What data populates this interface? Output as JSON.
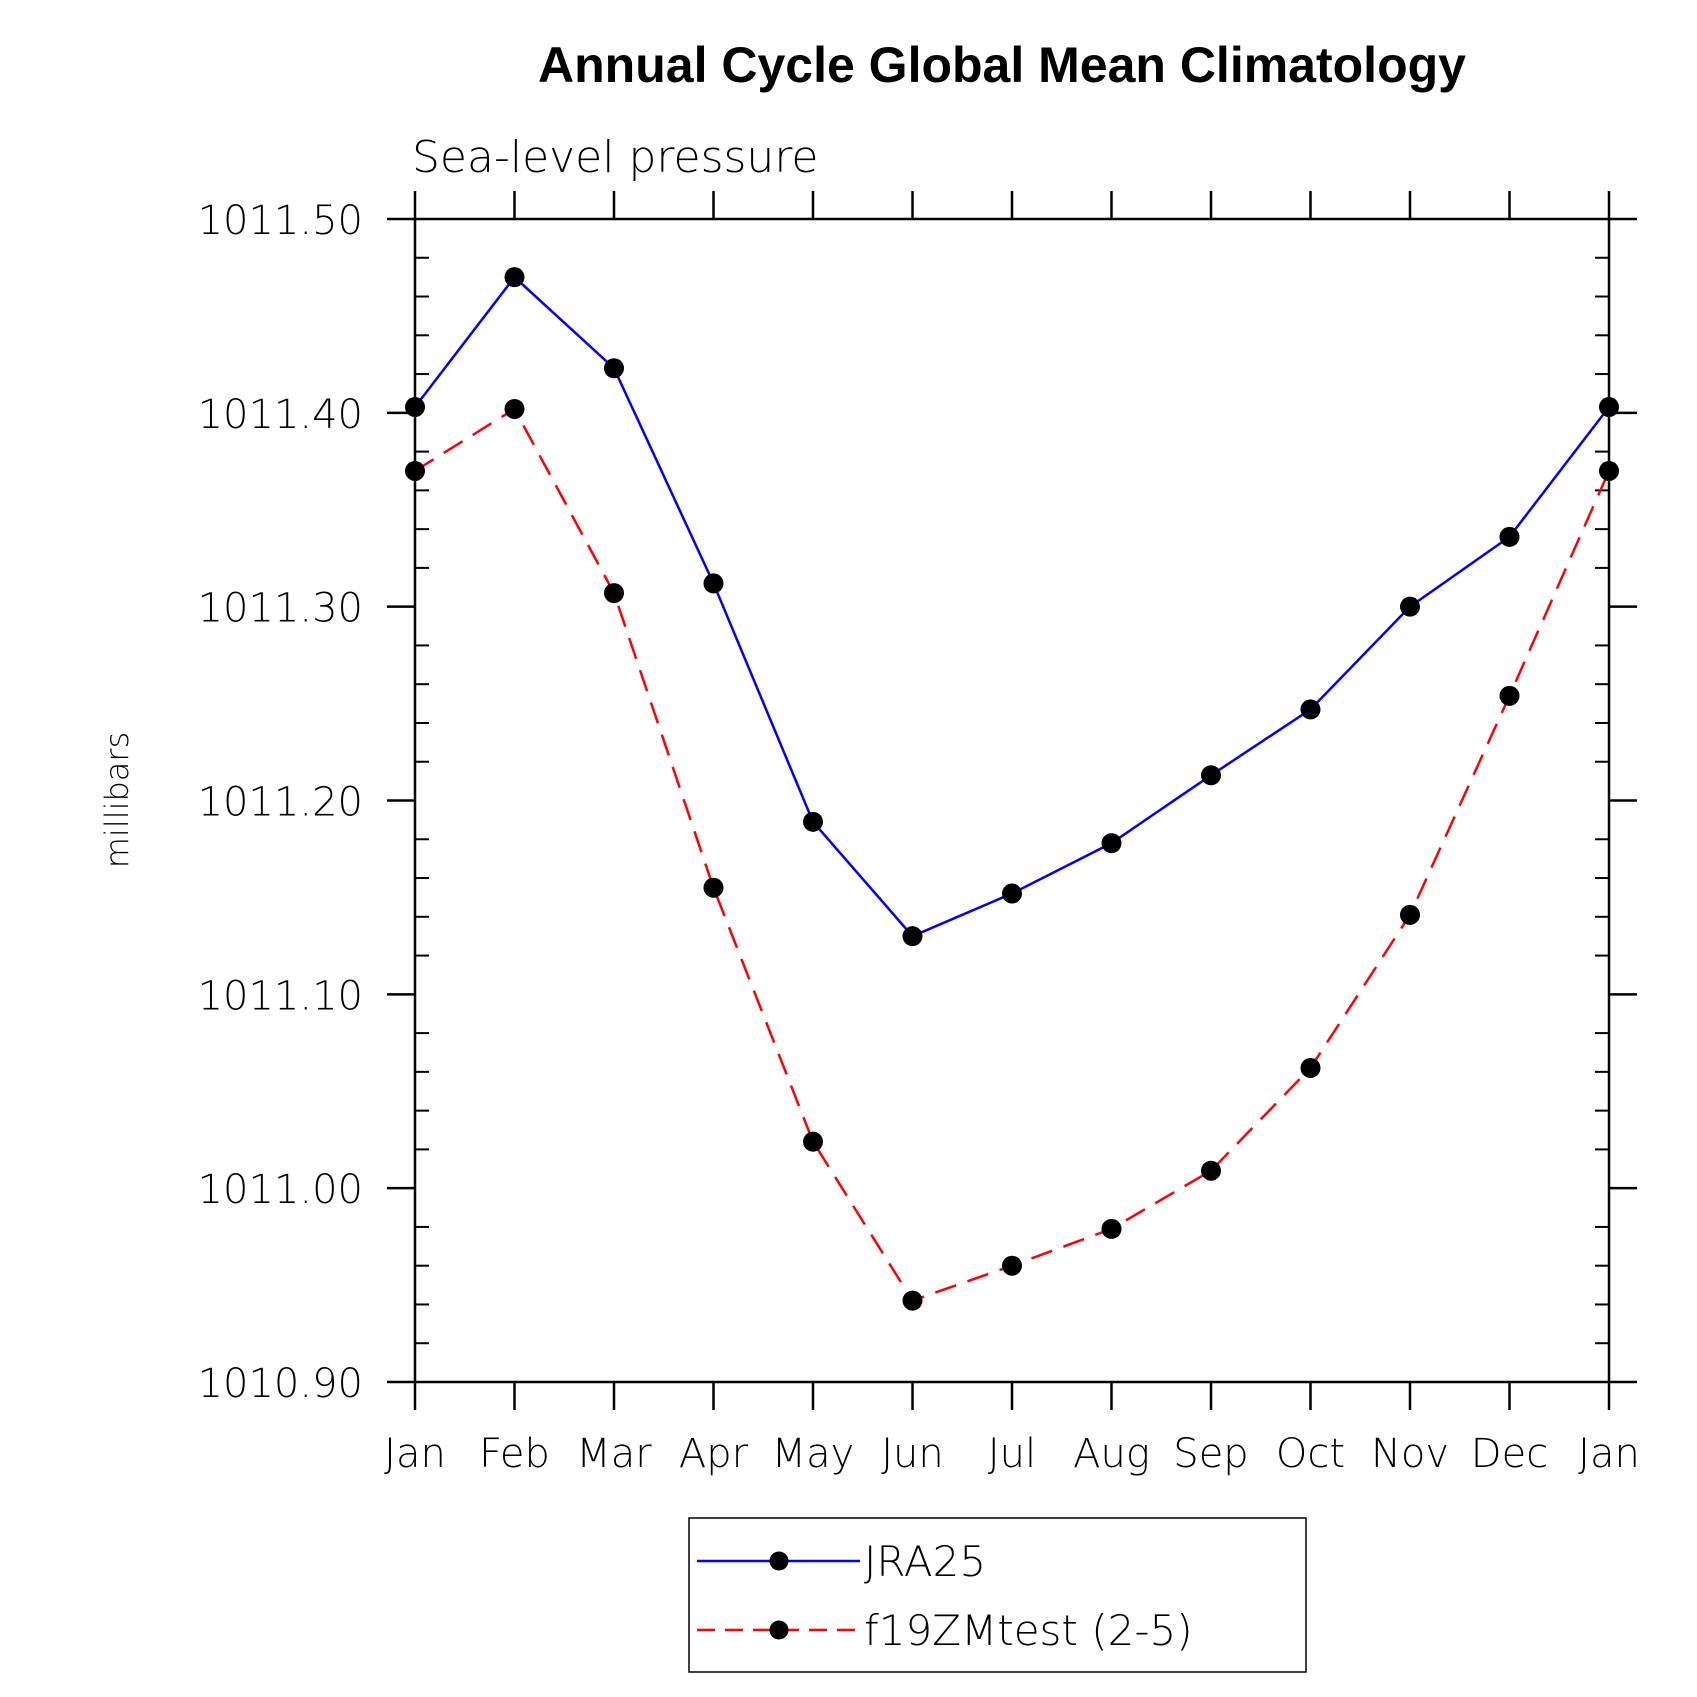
{
  "chart_data": {
    "type": "line",
    "title": "Annual Cycle Global Mean Climatology",
    "subtitle": "Sea-level pressure",
    "xlabel": "",
    "ylabel": "millibars",
    "categories": [
      "Jan",
      "Feb",
      "Mar",
      "Apr",
      "May",
      "Jun",
      "Jul",
      "Aug",
      "Sep",
      "Oct",
      "Nov",
      "Dec",
      "Jan"
    ],
    "ylim": [
      1010.9,
      1011.5
    ],
    "yticks": [
      "1011.50",
      "1011.40",
      "1011.30",
      "1011.20",
      "1011.10",
      "1011.00",
      "1010.90"
    ],
    "ytick_values": [
      1011.5,
      1011.4,
      1011.3,
      1011.2,
      1011.1,
      1011.0,
      1010.9
    ],
    "grid": false,
    "legend_position": "bottom-center",
    "series": [
      {
        "name": "JRA25",
        "color": "#0000ff",
        "dash": "solid",
        "marker": "filled-circle",
        "values": [
          1011.403,
          1011.47,
          1011.423,
          1011.312,
          1011.189,
          1011.13,
          1011.152,
          1011.178,
          1011.213,
          1011.247,
          1011.3,
          1011.336,
          1011.403
        ]
      },
      {
        "name": "f19ZMtest (2-5)",
        "color": "#ff0000",
        "dash": "dashed",
        "marker": "filled-circle",
        "values": [
          1011.37,
          1011.402,
          1011.307,
          1011.155,
          1011.024,
          1010.942,
          1010.96,
          1010.979,
          1011.009,
          1011.062,
          1011.141,
          1011.254,
          1011.37
        ]
      }
    ]
  }
}
